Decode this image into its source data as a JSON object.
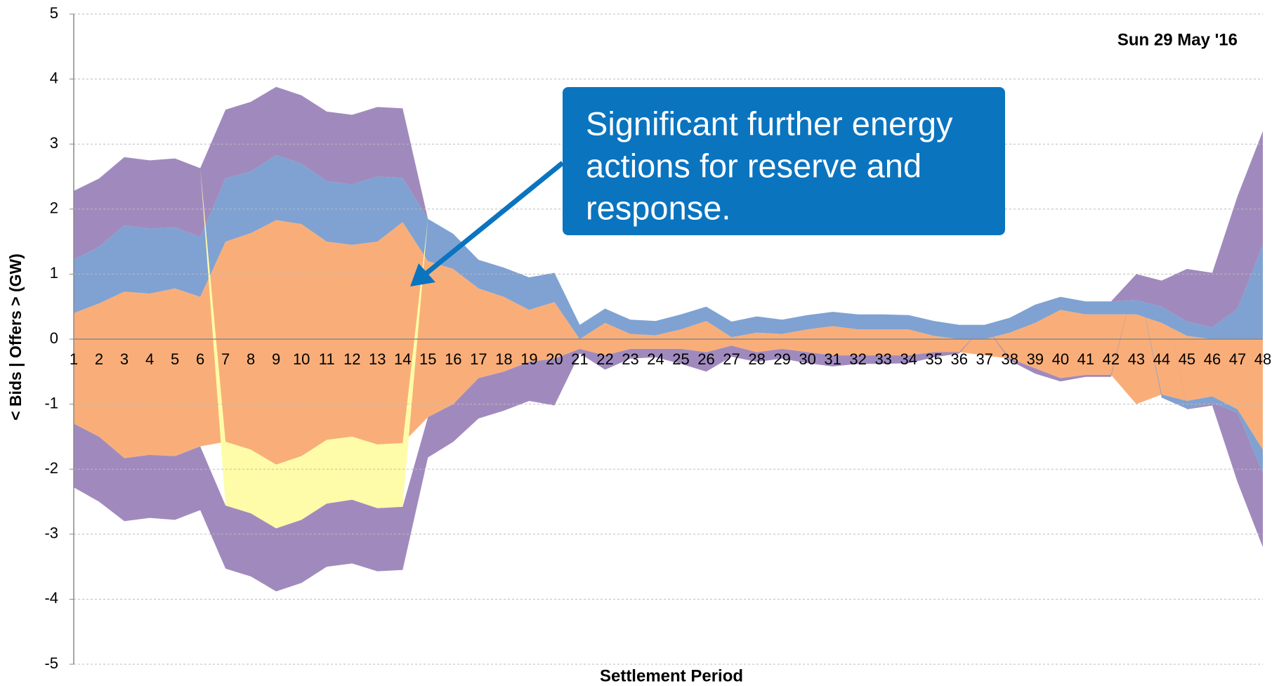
{
  "chart_data": {
    "type": "area",
    "stacked": true,
    "date_label": "Sun 29 May '16",
    "xlabel": "Settlement Period",
    "ylabel": "< Bids | Offers > (GW)",
    "annotation": {
      "lines": [
        "Significant further energy",
        "actions for reserve and",
        "response."
      ]
    },
    "categories": [
      "1",
      "2",
      "3",
      "4",
      "5",
      "6",
      "7",
      "8",
      "9",
      "10",
      "11",
      "12",
      "13",
      "14",
      "15",
      "16",
      "17",
      "18",
      "19",
      "20",
      "21",
      "22",
      "23",
      "24",
      "25",
      "26",
      "27",
      "28",
      "29",
      "30",
      "31",
      "32",
      "33",
      "34",
      "35",
      "36",
      "37",
      "38",
      "39",
      "40",
      "41",
      "42",
      "43",
      "44",
      "45",
      "46",
      "47",
      "48"
    ],
    "ylim": [
      -5,
      5
    ],
    "yticks": [
      -5,
      -4,
      -3,
      -2,
      -1,
      0,
      1,
      2,
      3,
      4,
      5
    ],
    "grid": true,
    "series": [
      {
        "color": "#f9ae79",
        "values": [
          0.4,
          0.55,
          0.73,
          0.7,
          0.78,
          0.65,
          1.5,
          1.63,
          1.83,
          1.77,
          1.5,
          1.45,
          1.5,
          1.8,
          1.2,
          1.08,
          0.78,
          0.65,
          0.45,
          0.57,
          0,
          0.25,
          0.08,
          0.06,
          0.15,
          0.28,
          0.03,
          0.1,
          0.08,
          0.15,
          0.2,
          0.15,
          0.15,
          0.15,
          0.05,
          0,
          0,
          0.1,
          0.25,
          0.45,
          0.38,
          0.38,
          0.38,
          0.25,
          0.05,
          0,
          0,
          0
        ]
      },
      {
        "color": "#7fa2d2",
        "values": [
          0.82,
          0.87,
          1.02,
          1.0,
          0.94,
          0.92,
          0.97,
          0.95,
          1.0,
          0.93,
          0.93,
          0.93,
          1.0,
          0.68,
          0.65,
          0.54,
          0.44,
          0.45,
          0.5,
          0.45,
          0.22,
          0.22,
          0.22,
          0.22,
          0.23,
          0.22,
          0.24,
          0.25,
          0.22,
          0.22,
          0.22,
          0.23,
          0.23,
          0.22,
          0.23,
          0.22,
          0.22,
          0.23,
          0.28,
          0.2,
          0.2,
          0.2,
          0.22,
          0.25,
          0.22,
          0.18,
          0.47,
          1.45
        ]
      },
      {
        "color": "#a08abd",
        "values": [
          1.06,
          1.05,
          1.05,
          1.05,
          1.06,
          1.06,
          1.06,
          1.07,
          1.05,
          1.05,
          1.07,
          1.07,
          1.07,
          1.07,
          0,
          0,
          0,
          0,
          0,
          0,
          0,
          0,
          0,
          0,
          0,
          0,
          0,
          0,
          0,
          0,
          0,
          0,
          0,
          0,
          0,
          0,
          0,
          0,
          0,
          0,
          0,
          0,
          0.4,
          0.4,
          0.81,
          0.84,
          1.73,
          1.75
        ]
      },
      {
        "color": "#f9ae79",
        "values": [
          -1.3,
          -1.5,
          -1.83,
          -1.78,
          -1.8,
          -1.65,
          -1.58,
          -1.7,
          -1.93,
          -1.8,
          -1.55,
          -1.5,
          -1.62,
          -1.6,
          -1.2,
          -1.0,
          -0.6,
          -0.5,
          -0.35,
          -0.3,
          -0.15,
          -0.25,
          -0.15,
          -0.15,
          -0.15,
          -0.2,
          -0.1,
          -0.2,
          -0.15,
          -0.2,
          -0.25,
          -0.25,
          -0.25,
          -0.25,
          -0.2,
          -0.2,
          -0.25,
          -0.3,
          -0.45,
          -0.6,
          -0.55,
          -0.55,
          -1.0,
          -0.85,
          -0.95,
          -0.88,
          -1.08,
          -1.7
        ]
      },
      {
        "color": "#fefca8",
        "values": [
          0,
          0,
          0,
          0,
          0,
          0,
          -0.98,
          -0.98,
          -0.98,
          -0.98,
          -0.98,
          -0.97,
          -0.98,
          -0.98,
          0,
          0,
          0,
          0,
          0,
          0,
          0,
          0,
          0,
          0,
          0,
          0,
          0,
          0,
          0,
          0,
          0,
          0,
          0,
          0,
          0,
          0,
          0,
          0,
          0,
          0,
          0,
          0,
          0,
          0,
          0,
          0,
          0,
          0
        ]
      },
      {
        "color": "#7fa2d2",
        "values": [
          0,
          0,
          0,
          0,
          0,
          0,
          0,
          0,
          0,
          0,
          0,
          0,
          0,
          0,
          0,
          0,
          0,
          0,
          0,
          0,
          0,
          0,
          0,
          0,
          0,
          0,
          0,
          0,
          0,
          0,
          0,
          0,
          0,
          0,
          0,
          0,
          0,
          0,
          0,
          0,
          0,
          0,
          0,
          -0.05,
          -0.12,
          -0.1,
          -0.05,
          -0.35
        ]
      },
      {
        "color": "#a08abd",
        "values": [
          -0.98,
          -1.0,
          -0.97,
          -0.97,
          -0.98,
          -0.98,
          -0.97,
          -0.97,
          -0.97,
          -0.97,
          -0.97,
          -0.98,
          -0.97,
          -0.97,
          -0.62,
          -0.58,
          -0.62,
          -0.6,
          -0.6,
          -0.72,
          -0.07,
          -0.22,
          -0.15,
          -0.13,
          -0.23,
          -0.3,
          -0.17,
          -0.15,
          -0.15,
          -0.17,
          -0.17,
          -0.13,
          -0.13,
          -0.12,
          -0.08,
          -0.02,
          0,
          -0.03,
          -0.08,
          -0.05,
          -0.03,
          -0.03,
          0,
          0,
          -0.01,
          -0.04,
          -1.07,
          -1.15
        ]
      }
    ]
  }
}
